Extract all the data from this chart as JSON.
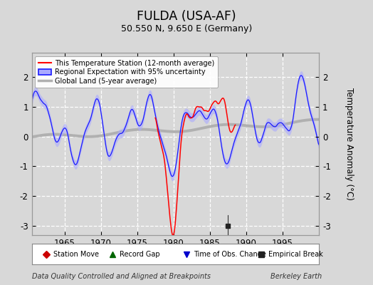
{
  "title": "FULDA (USA-AF)",
  "subtitle": "50.550 N, 9.650 E (Germany)",
  "ylabel": "Temperature Anomaly (°C)",
  "xlabel_left": "Data Quality Controlled and Aligned at Breakpoints",
  "xlabel_right": "Berkeley Earth",
  "xlim": [
    1960.5,
    2000
  ],
  "ylim": [
    -3.3,
    2.8
  ],
  "yticks": [
    -3,
    -2,
    -1,
    0,
    1,
    2
  ],
  "xticks": [
    1965,
    1970,
    1975,
    1980,
    1985,
    1990,
    1995
  ],
  "bg_color": "#d8d8d8",
  "plot_bg_color": "#d8d8d8",
  "regional_color": "#1a1aff",
  "regional_fill_color": "#aaaaff",
  "station_color": "#ff0000",
  "global_color": "#b0b0b0",
  "empirical_break_x": 1987.5,
  "empirical_break_y": -3.0,
  "bottom_legend": [
    {
      "label": "Station Move",
      "color": "#cc0000",
      "marker": "D"
    },
    {
      "label": "Record Gap",
      "color": "#006600",
      "marker": "^"
    },
    {
      "label": "Time of Obs. Change",
      "color": "#0000cc",
      "marker": "v"
    },
    {
      "label": "Empirical Break",
      "color": "#222222",
      "marker": "s"
    }
  ]
}
